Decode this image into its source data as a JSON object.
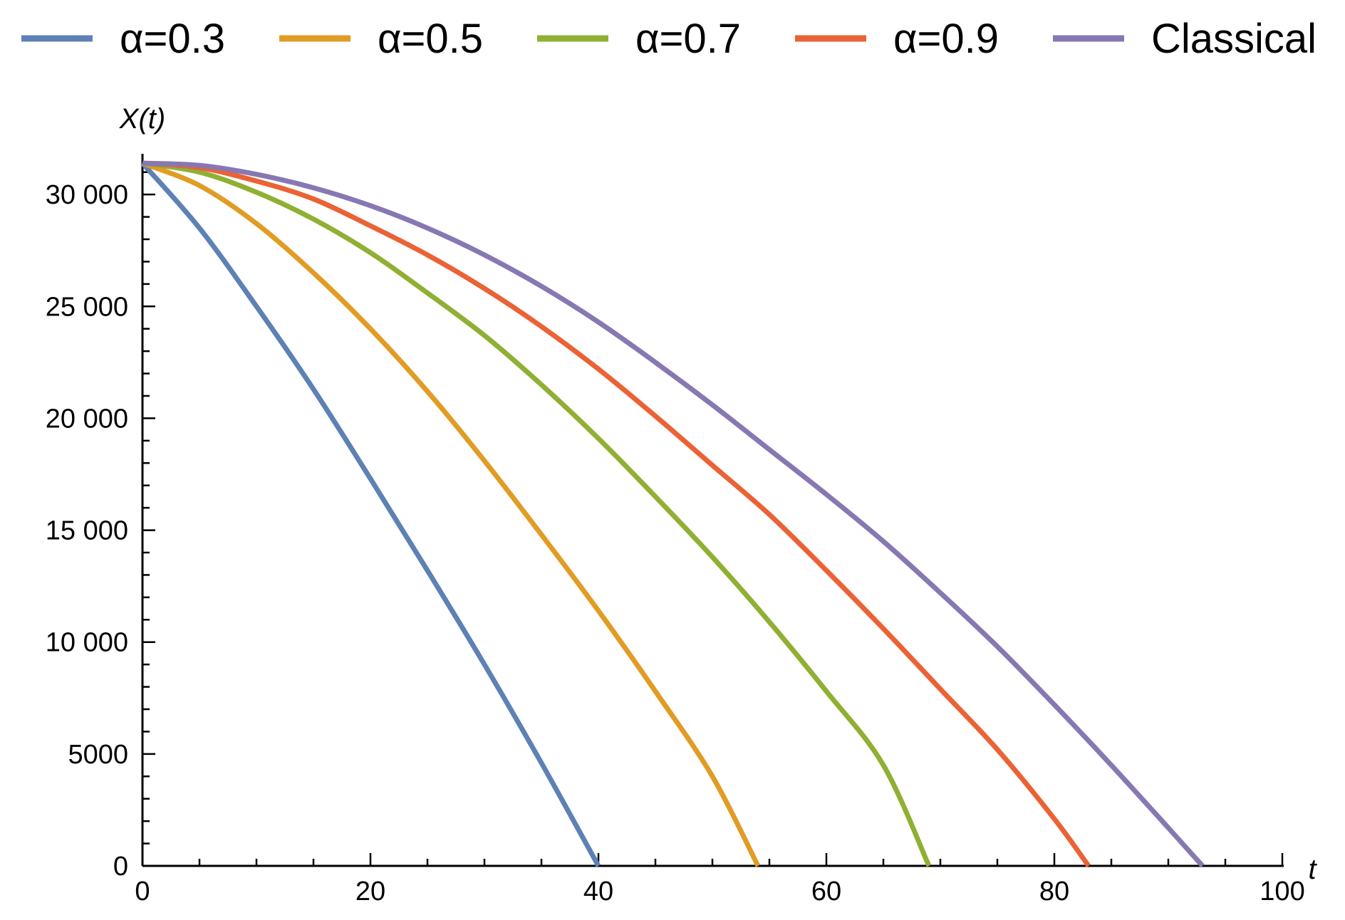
{
  "chart_data": {
    "type": "line",
    "title": "",
    "xlabel": "t",
    "ylabel": "X(t)",
    "xlim": [
      0,
      100
    ],
    "ylim": [
      0,
      31500
    ],
    "x_ticks": [
      0,
      20,
      40,
      60,
      80,
      100
    ],
    "x_tick_labels": [
      "0",
      "20",
      "40",
      "60",
      "80",
      "100"
    ],
    "y_ticks": [
      0,
      5000,
      10000,
      15000,
      20000,
      25000,
      30000
    ],
    "y_tick_labels": [
      "0",
      "5000",
      "10 000",
      "15 000",
      "20 000",
      "25 000",
      "30 000"
    ],
    "grid": false,
    "legend_position": "top",
    "series": [
      {
        "name": "α=0.3",
        "color": "#5e81b5",
        "x": [
          0,
          5,
          10,
          15,
          20,
          25,
          30,
          35,
          40
        ],
        "y": [
          31400,
          28500,
          25000,
          21300,
          17300,
          13200,
          9000,
          4600,
          0
        ]
      },
      {
        "name": "α=0.5",
        "color": "#e19c24",
        "x": [
          0,
          5,
          10,
          15,
          20,
          25,
          30,
          35,
          40,
          45,
          50,
          54
        ],
        "y": [
          31400,
          30400,
          28700,
          26500,
          24000,
          21200,
          18100,
          14800,
          11400,
          7800,
          4000,
          0
        ]
      },
      {
        "name": "α=0.7",
        "color": "#8fb032",
        "x": [
          0,
          5,
          10,
          15,
          20,
          25,
          30,
          35,
          40,
          45,
          50,
          55,
          60,
          65,
          69
        ],
        "y": [
          31400,
          31000,
          30100,
          28900,
          27400,
          25600,
          23700,
          21500,
          19100,
          16500,
          13800,
          10900,
          7800,
          4500,
          0
        ]
      },
      {
        "name": "α=0.9",
        "color": "#eb6235",
        "x": [
          0,
          5,
          10,
          15,
          20,
          25,
          30,
          35,
          40,
          45,
          50,
          55,
          60,
          65,
          70,
          75,
          80,
          83
        ],
        "y": [
          31400,
          31200,
          30600,
          29800,
          28600,
          27300,
          25800,
          24100,
          22200,
          20100,
          17900,
          15700,
          13200,
          10600,
          7900,
          5200,
          2100,
          0
        ]
      },
      {
        "name": "Classical",
        "color": "#8778b3",
        "x": [
          0,
          5,
          10,
          15,
          20,
          25,
          30,
          35,
          40,
          45,
          50,
          55,
          60,
          65,
          70,
          75,
          80,
          85,
          90,
          93
        ],
        "y": [
          31400,
          31300,
          30900,
          30300,
          29500,
          28500,
          27300,
          25900,
          24300,
          22500,
          20600,
          18600,
          16600,
          14500,
          12200,
          9800,
          7200,
          4500,
          1700,
          0
        ]
      }
    ]
  }
}
